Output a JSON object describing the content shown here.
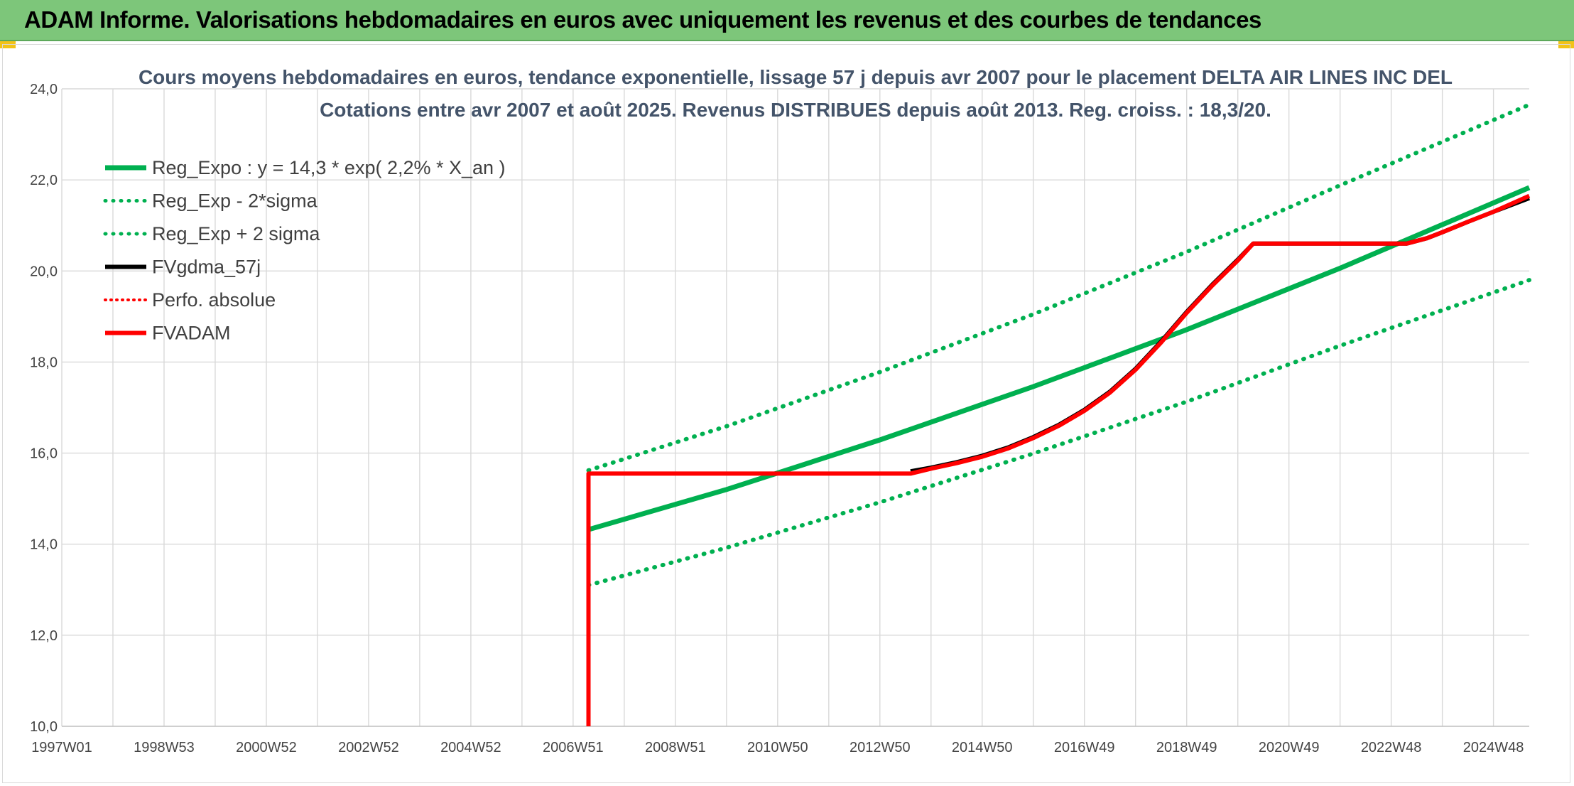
{
  "banner": {
    "title": "ADAM Informe. Valorisations hebdomadaires en euros avec uniquement les revenus et des courbes de tendances"
  },
  "colors": {
    "banner_bg": "#7dc67a",
    "green": "#00b050",
    "red": "#ff0000",
    "black": "#000000"
  },
  "chart_data": {
    "type": "line",
    "title": "Cours moyens hebdomadaires en euros, tendance exponentielle, lissage 57 j depuis avr 2007 pour le placement DELTA AIR LINES INC DEL",
    "subtitle": "Cotations entre avr 2007 et août 2025. Revenus DISTRIBUES depuis août 2013. Reg. croiss. : 18,3/20.",
    "xlabel": "",
    "ylabel": "",
    "x_tick_labels": [
      "1997W01",
      "1998W53",
      "2000W52",
      "2002W52",
      "2004W52",
      "2006W51",
      "2008W51",
      "2010W50",
      "2012W50",
      "2014W50",
      "2016W49",
      "2018W49",
      "2020W49",
      "2022W48",
      "2024W48"
    ],
    "x_tick_years": [
      1997.0,
      1999.0,
      2001.0,
      2003.0,
      2005.0,
      2007.0,
      2009.0,
      2011.0,
      2013.0,
      2015.0,
      2017.0,
      2019.0,
      2021.0,
      2023.0,
      2025.0
    ],
    "xlim": [
      1997.0,
      2025.7
    ],
    "ylim": [
      10,
      24
    ],
    "y_ticks": [
      10,
      12,
      14,
      16,
      18,
      20,
      22,
      24
    ],
    "y_tick_labels": [
      "10,0",
      "12,0",
      "14,0",
      "16,0",
      "18,0",
      "20,0",
      "22,0",
      "24,0"
    ],
    "grid": true,
    "legend_position": "top-left",
    "series": [
      {
        "name": "Reg_Expo : y = 14,3 * exp( 2,2% *  X_an )",
        "style": "solid",
        "color": "#00b050",
        "x": [
          2007.3,
          2010,
          2013,
          2016,
          2019,
          2022,
          2025.7
        ],
        "y": [
          14.32,
          15.2,
          16.29,
          17.46,
          18.71,
          20.06,
          21.83
        ]
      },
      {
        "name": "Reg_Exp - 2*sigma",
        "style": "dotted",
        "color": "#00b050",
        "x": [
          2007.3,
          2010,
          2013,
          2016,
          2019,
          2022,
          2025.7
        ],
        "y": [
          13.1,
          13.92,
          14.92,
          15.99,
          17.13,
          18.36,
          19.8
        ]
      },
      {
        "name": "Reg_Exp + 2 sigma",
        "style": "dotted",
        "color": "#00b050",
        "x": [
          2007.3,
          2010,
          2013,
          2016,
          2019,
          2022,
          2025.7
        ],
        "y": [
          15.62,
          16.59,
          17.78,
          19.05,
          20.42,
          21.88,
          23.65
        ]
      },
      {
        "name": "FVgdma_57j",
        "style": "solid",
        "color": "#000000",
        "x": [
          2013.6,
          2014.0,
          2014.5,
          2015.0,
          2015.5,
          2016.0,
          2016.5,
          2017.0,
          2017.5,
          2018.0,
          2018.5,
          2019.0,
          2019.5,
          2020.0,
          2020.3,
          2023.3,
          2023.7,
          2024.0,
          2024.5,
          2025.0,
          2025.7
        ],
        "y": [
          15.6,
          15.68,
          15.8,
          15.94,
          16.12,
          16.35,
          16.62,
          16.95,
          17.35,
          17.85,
          18.45,
          19.1,
          19.7,
          20.25,
          20.6,
          20.6,
          20.72,
          20.85,
          21.08,
          21.3,
          21.6
        ]
      },
      {
        "name": "Perfo. absolue",
        "style": "dotted",
        "color": "#ff0000",
        "x": [],
        "y": []
      },
      {
        "name": "FVADAM",
        "style": "solid",
        "color": "#ff0000",
        "x": [
          2007.3,
          2007.3,
          2013.6,
          2014.0,
          2014.5,
          2015.0,
          2015.5,
          2016.0,
          2016.5,
          2017.0,
          2017.5,
          2018.0,
          2018.5,
          2019.0,
          2019.5,
          2020.0,
          2020.3,
          2023.3,
          2023.7,
          2024.0,
          2024.5,
          2025.0,
          2025.7
        ],
        "y": [
          10.0,
          15.55,
          15.55,
          15.66,
          15.78,
          15.92,
          16.1,
          16.33,
          16.6,
          16.93,
          17.33,
          17.83,
          18.43,
          19.08,
          19.68,
          20.23,
          20.6,
          20.6,
          20.72,
          20.85,
          21.08,
          21.3,
          21.65
        ]
      }
    ]
  }
}
